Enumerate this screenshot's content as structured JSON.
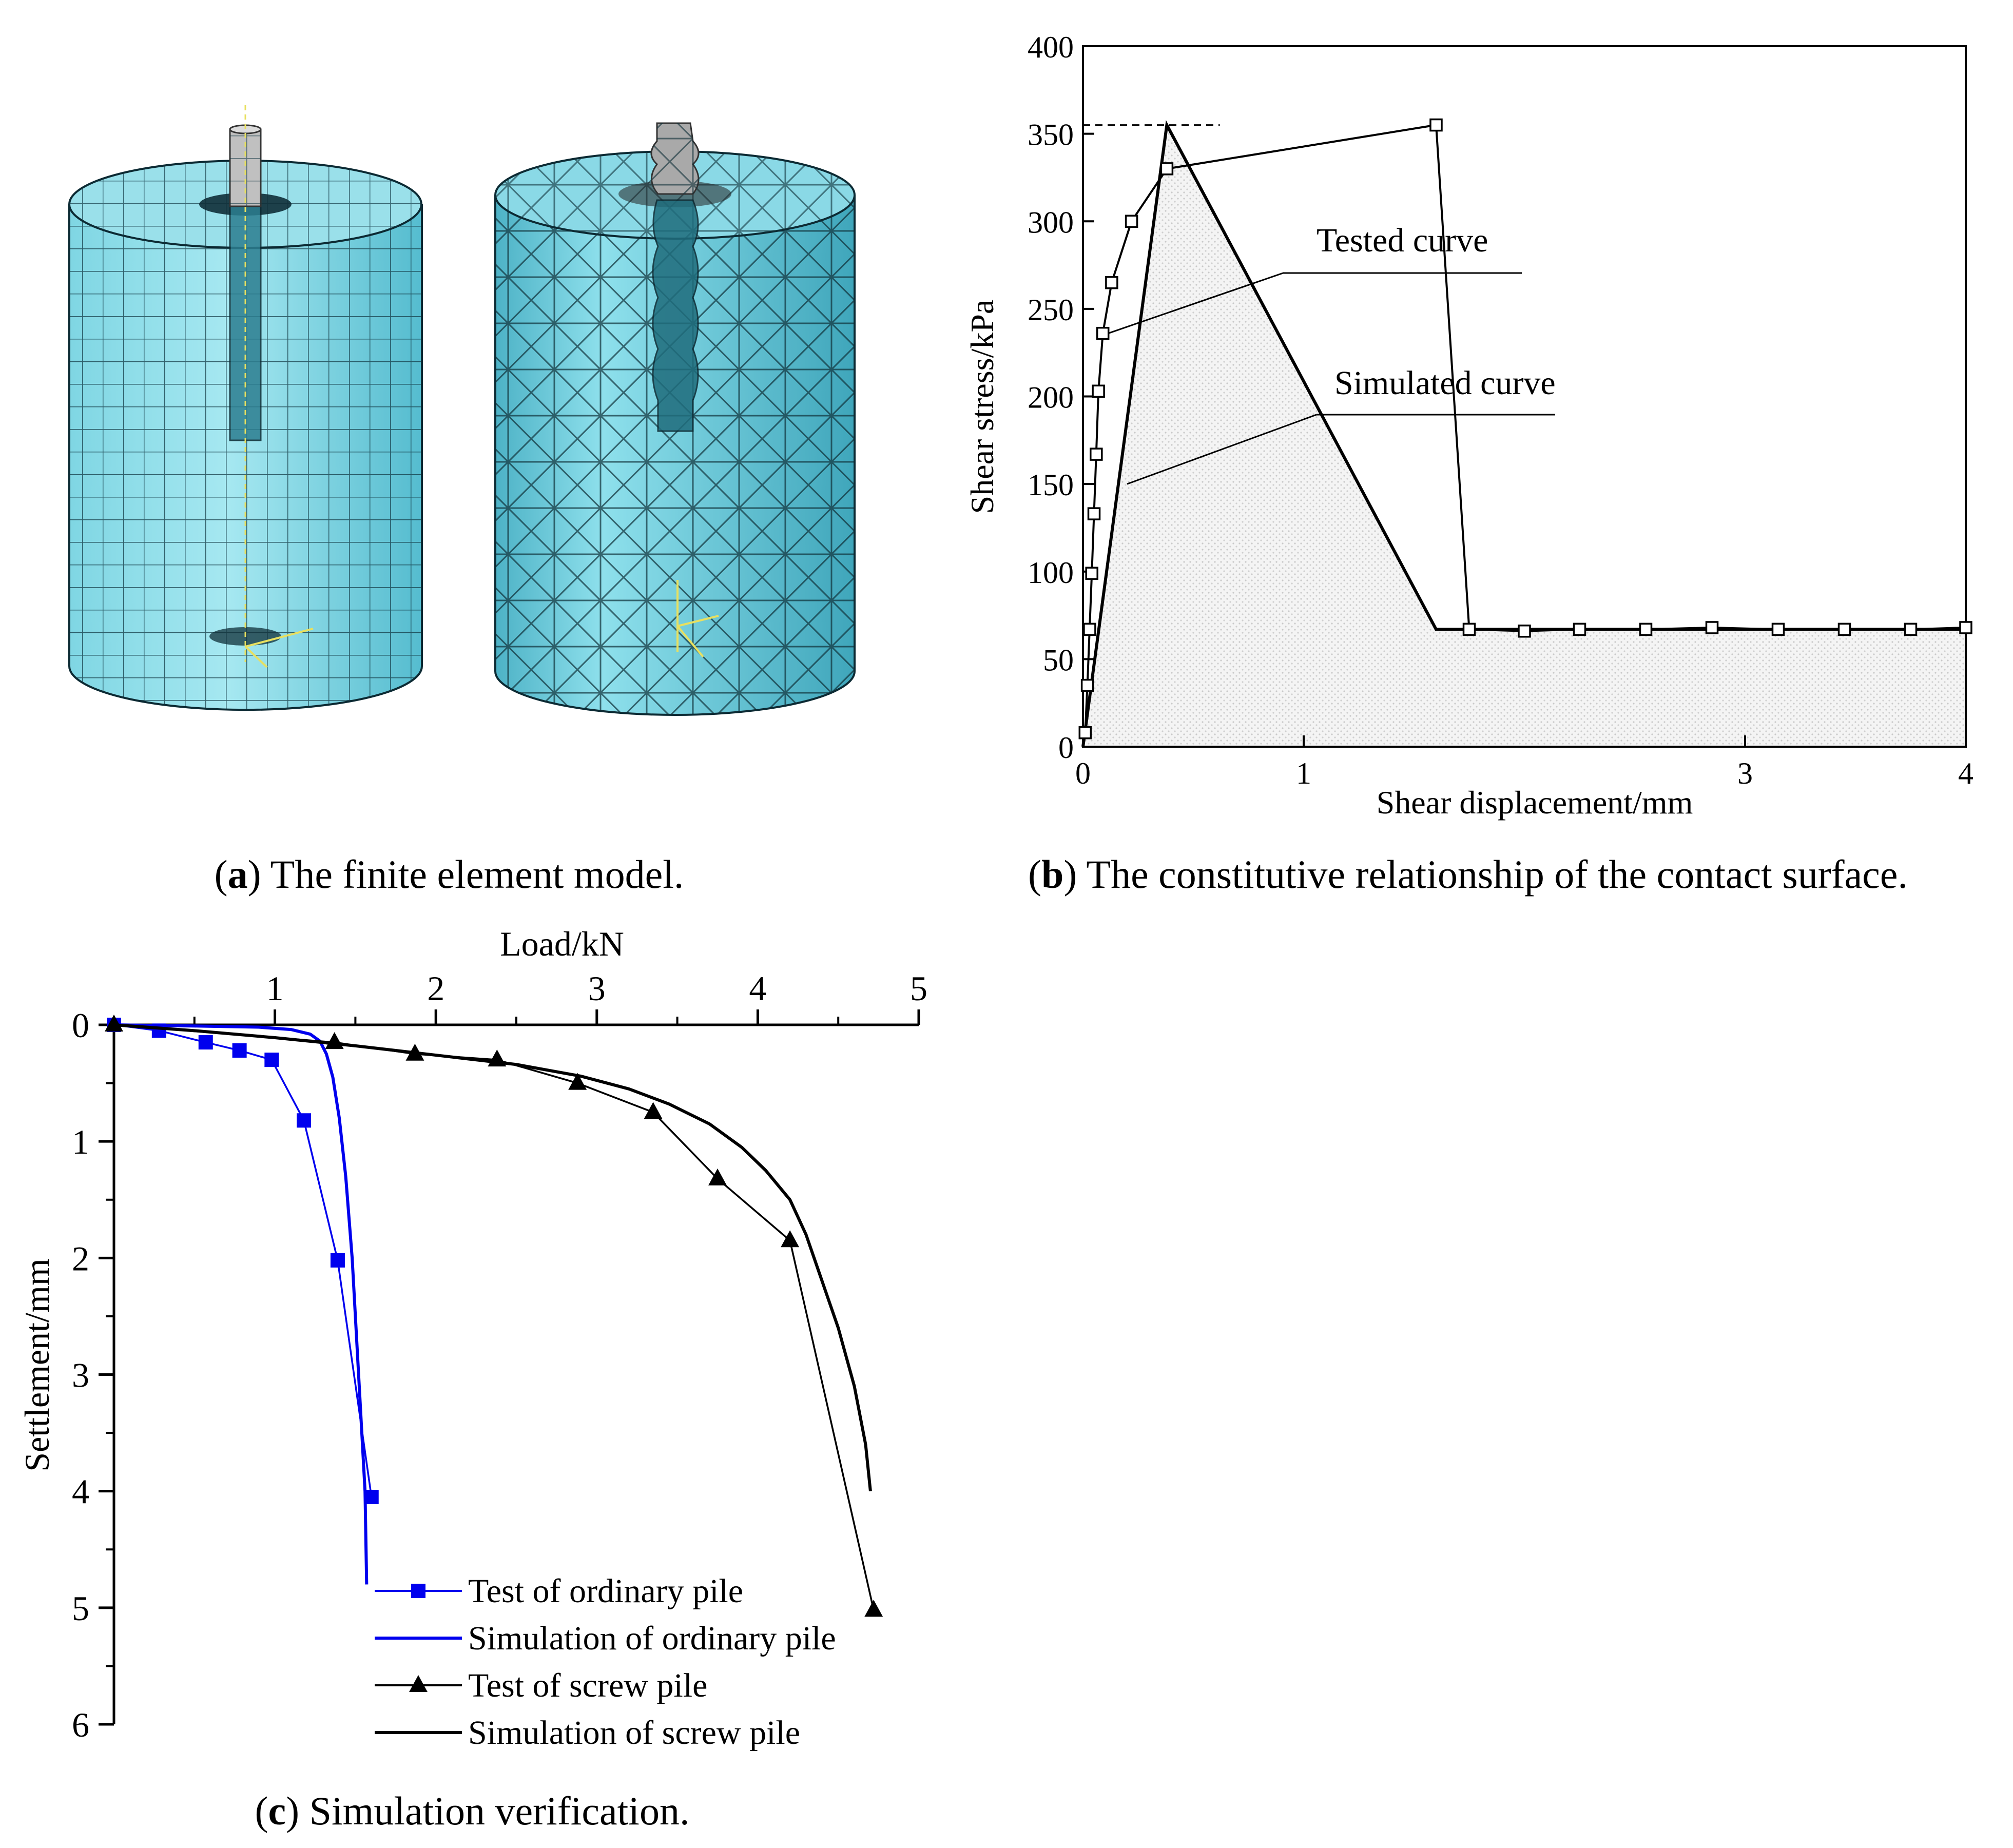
{
  "panels": {
    "a": {
      "caption_letter": "a",
      "caption_text": " The finite element model.",
      "colors": {
        "soil": "#5ec4d6",
        "soil_light": "#9fe3ee",
        "mesh": "#0c2a33",
        "pile": "#2c7e90",
        "pile_head": "#b8b8b8"
      }
    },
    "b": {
      "caption_letter": "b",
      "caption_text": " The constitutive relationship of the contact surface."
    },
    "c": {
      "caption_letter": "c",
      "caption_text": " Simulation verification."
    }
  },
  "chart_data": [
    {
      "id": "b",
      "type": "line",
      "xlabel": "Shear displacement/mm",
      "ylabel": "Shear stress/kPa",
      "xlim": [
        0,
        4
      ],
      "ylim": [
        0,
        400
      ],
      "xticks": [
        0,
        1,
        3,
        4
      ],
      "yticks": [
        0,
        50,
        100,
        150,
        200,
        250,
        300,
        350,
        400
      ],
      "grid": false,
      "annotations": [
        {
          "text": "Tested curve",
          "series": "tested"
        },
        {
          "text": "Simulated curve",
          "series": "simulated"
        }
      ],
      "series": [
        {
          "key": "tested",
          "marker": "open-square",
          "x": [
            0.01,
            0.02,
            0.03,
            0.04,
            0.05,
            0.06,
            0.07,
            0.09,
            0.13,
            0.22,
            0.38,
            1.6,
            1.75,
            2.0,
            2.25,
            2.55,
            2.85,
            3.15,
            3.45,
            3.75,
            4.0
          ],
          "y": [
            8,
            35,
            67,
            99,
            133,
            167,
            203,
            236,
            265,
            300,
            330,
            355,
            67,
            66,
            67,
            67,
            68,
            67,
            67,
            67,
            68
          ]
        },
        {
          "key": "simulated",
          "x": [
            0,
            0.38,
            1.6,
            4.0
          ],
          "y": [
            0,
            355,
            67,
            67
          ]
        }
      ],
      "peak_reference": {
        "x_end": 0.62,
        "y": 355
      }
    },
    {
      "id": "c",
      "type": "line",
      "xlabel": "Load/kN",
      "ylabel": "Settlement/mm",
      "xlim": [
        0,
        5
      ],
      "ylim": [
        0,
        6
      ],
      "y_inverted": true,
      "x_axis_position": "top",
      "xticks": [
        1,
        2,
        3,
        4,
        5
      ],
      "yticks": [
        0,
        1,
        2,
        3,
        4,
        5,
        6
      ],
      "grid": false,
      "legend_position": "bottom-right",
      "series": [
        {
          "name": "Test of ordinary pile",
          "color": "#0000ee",
          "marker": "filled-square",
          "line": "solid",
          "x": [
            0.0,
            0.28,
            0.57,
            0.78,
            0.98,
            1.18,
            1.39,
            1.6
          ],
          "y": [
            0.0,
            0.05,
            0.15,
            0.22,
            0.3,
            0.82,
            2.02,
            4.05
          ]
        },
        {
          "name": "Simulation of ordinary pile",
          "color": "#0000ee",
          "marker": "none",
          "line": "solid",
          "x": [
            0.0,
            0.5,
            0.9,
            1.1,
            1.22,
            1.28,
            1.32,
            1.36,
            1.4,
            1.44,
            1.48,
            1.52,
            1.56,
            1.57
          ],
          "y": [
            0.0,
            0.01,
            0.02,
            0.04,
            0.08,
            0.14,
            0.25,
            0.45,
            0.8,
            1.3,
            2.0,
            3.0,
            4.0,
            4.8
          ]
        },
        {
          "name": "Test of screw pile",
          "color": "#000000",
          "marker": "filled-triangle",
          "line": "solid",
          "x": [
            0.0,
            1.37,
            1.87,
            2.38,
            2.88,
            3.35,
            3.75,
            4.2,
            4.72
          ],
          "y": [
            0.0,
            0.15,
            0.25,
            0.3,
            0.5,
            0.75,
            1.32,
            1.85,
            5.02
          ]
        },
        {
          "name": "Simulation of screw pile",
          "color": "#000000",
          "marker": "none",
          "line": "solid",
          "x": [
            0.0,
            0.5,
            1.0,
            1.5,
            2.0,
            2.5,
            2.9,
            3.2,
            3.45,
            3.7,
            3.9,
            4.05,
            4.2,
            4.3,
            4.4,
            4.5,
            4.6,
            4.67,
            4.7
          ],
          "y": [
            0.0,
            0.05,
            0.11,
            0.18,
            0.26,
            0.34,
            0.44,
            0.55,
            0.68,
            0.85,
            1.05,
            1.25,
            1.5,
            1.8,
            2.2,
            2.6,
            3.1,
            3.6,
            4.0
          ]
        }
      ]
    }
  ]
}
